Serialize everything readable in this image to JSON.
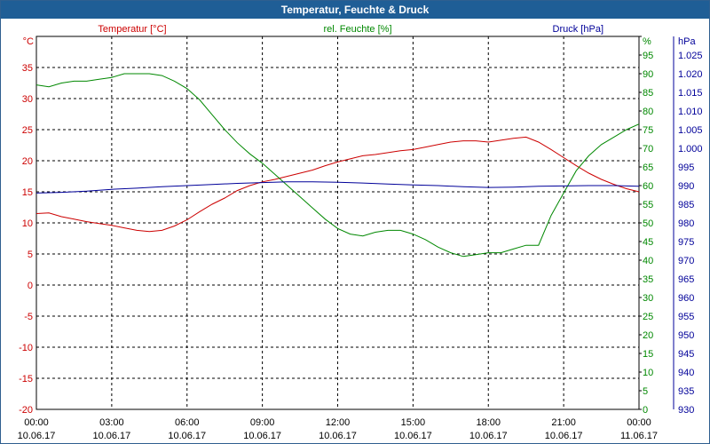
{
  "window": {
    "title": "Temperatur, Feuchte & Druck"
  },
  "colors": {
    "temperature": "#cc0000",
    "humidity": "#008800",
    "pressure": "#000099",
    "grid": "#000000",
    "titlebar": "#1f5e96"
  },
  "chart_data": {
    "type": "line",
    "title": "Temperatur, Feuchte & Druck",
    "grid": true,
    "x": {
      "labels": [
        "00:00",
        "03:00",
        "06:00",
        "09:00",
        "12:00",
        "15:00",
        "18:00",
        "21:00",
        "00:00"
      ],
      "dates": [
        "10.06.17",
        "10.06.17",
        "10.06.17",
        "10.06.17",
        "10.06.17",
        "10.06.17",
        "10.06.17",
        "10.06.17",
        "11.06.17"
      ],
      "range_hours": [
        0,
        24
      ]
    },
    "axes": {
      "temperature": {
        "label": "Temperatur [°C]",
        "unit": "°C",
        "side": "left",
        "range": [
          -20,
          40
        ],
        "ticks": [
          "35",
          "30",
          "25",
          "20",
          "15",
          "10",
          "5",
          "0",
          "-5",
          "-10",
          "-15",
          "-20"
        ]
      },
      "humidity": {
        "label": "rel. Feuchte [%]",
        "unit": "%",
        "side": "right",
        "range": [
          0,
          100
        ],
        "ticks": [
          "95",
          "90",
          "85",
          "80",
          "75",
          "70",
          "65",
          "60",
          "55",
          "50",
          "45",
          "40",
          "35",
          "30",
          "25",
          "20",
          "15",
          "10",
          "5",
          "0"
        ]
      },
      "pressure": {
        "label": "Druck [hPa]",
        "unit": "hPa",
        "side": "right",
        "range": [
          930,
          1030
        ],
        "ticks": [
          "1.025",
          "1.020",
          "1.015",
          "1.010",
          "1.005",
          "1.000",
          "995",
          "990",
          "985",
          "980",
          "975",
          "970",
          "965",
          "960",
          "955",
          "950",
          "945",
          "940",
          "935",
          "930"
        ]
      }
    },
    "series": [
      {
        "name": "Temperatur [°C]",
        "axis": "temperature",
        "points": [
          [
            0,
            11.5
          ],
          [
            0.5,
            11.6
          ],
          [
            1,
            11.0
          ],
          [
            1.5,
            10.6
          ],
          [
            2,
            10.2
          ],
          [
            2.5,
            9.9
          ],
          [
            3,
            9.6
          ],
          [
            3.5,
            9.2
          ],
          [
            4,
            8.8
          ],
          [
            4.5,
            8.6
          ],
          [
            5,
            8.8
          ],
          [
            5.5,
            9.5
          ],
          [
            6,
            10.5
          ],
          [
            6.5,
            11.8
          ],
          [
            7,
            13.0
          ],
          [
            7.5,
            14.0
          ],
          [
            8,
            15.2
          ],
          [
            8.5,
            16.0
          ],
          [
            9,
            16.6
          ],
          [
            9.5,
            17.0
          ],
          [
            10,
            17.5
          ],
          [
            10.5,
            18.0
          ],
          [
            11,
            18.5
          ],
          [
            11.5,
            19.2
          ],
          [
            12,
            19.8
          ],
          [
            12.5,
            20.3
          ],
          [
            13,
            20.8
          ],
          [
            13.5,
            21.0
          ],
          [
            14,
            21.3
          ],
          [
            14.5,
            21.6
          ],
          [
            15,
            21.8
          ],
          [
            15.5,
            22.2
          ],
          [
            16,
            22.6
          ],
          [
            16.5,
            23.0
          ],
          [
            17,
            23.2
          ],
          [
            17.5,
            23.2
          ],
          [
            18,
            23.0
          ],
          [
            18.5,
            23.3
          ],
          [
            19,
            23.6
          ],
          [
            19.5,
            23.8
          ],
          [
            20,
            23.0
          ],
          [
            20.5,
            21.8
          ],
          [
            21,
            20.5
          ],
          [
            21.5,
            19.2
          ],
          [
            22,
            18.0
          ],
          [
            22.5,
            17.0
          ],
          [
            23,
            16.2
          ],
          [
            23.5,
            15.5
          ],
          [
            24,
            15.0
          ]
        ]
      },
      {
        "name": "rel. Feuchte [%]",
        "axis": "humidity",
        "points": [
          [
            0,
            87
          ],
          [
            0.5,
            86.5
          ],
          [
            1,
            87.5
          ],
          [
            1.5,
            88
          ],
          [
            2,
            88
          ],
          [
            2.5,
            88.5
          ],
          [
            3,
            89
          ],
          [
            3.5,
            90
          ],
          [
            4,
            90
          ],
          [
            4.5,
            90
          ],
          [
            5,
            89.5
          ],
          [
            5.5,
            88
          ],
          [
            6,
            86
          ],
          [
            6.5,
            83
          ],
          [
            7,
            79
          ],
          [
            7.5,
            75
          ],
          [
            8,
            71.5
          ],
          [
            8.5,
            68.5
          ],
          [
            9,
            66
          ],
          [
            9.5,
            63
          ],
          [
            10,
            60
          ],
          [
            10.5,
            57
          ],
          [
            11,
            54
          ],
          [
            11.5,
            51
          ],
          [
            12,
            48.5
          ],
          [
            12.5,
            47
          ],
          [
            13,
            46.5
          ],
          [
            13.5,
            47.5
          ],
          [
            14,
            48
          ],
          [
            14.5,
            48
          ],
          [
            15,
            47
          ],
          [
            15.5,
            45.5
          ],
          [
            16,
            43.5
          ],
          [
            16.5,
            42
          ],
          [
            17,
            41
          ],
          [
            17.5,
            41.5
          ],
          [
            18,
            42
          ],
          [
            18.5,
            42
          ],
          [
            19,
            43
          ],
          [
            19.5,
            44
          ],
          [
            20,
            44
          ],
          [
            20.5,
            52
          ],
          [
            21,
            58
          ],
          [
            21.5,
            64
          ],
          [
            22,
            68
          ],
          [
            22.5,
            71
          ],
          [
            23,
            73
          ],
          [
            23.5,
            75
          ],
          [
            24,
            76.5
          ]
        ]
      },
      {
        "name": "Druck [hPa]",
        "axis": "pressure",
        "points": [
          [
            0,
            988
          ],
          [
            1,
            988.2
          ],
          [
            2,
            988.5
          ],
          [
            3,
            989
          ],
          [
            4,
            989.3
          ],
          [
            5,
            989.7
          ],
          [
            6,
            990
          ],
          [
            7,
            990.3
          ],
          [
            8,
            990.6
          ],
          [
            9,
            990.8
          ],
          [
            10,
            991
          ],
          [
            11,
            991
          ],
          [
            12,
            990.9
          ],
          [
            13,
            990.7
          ],
          [
            14,
            990.4
          ],
          [
            15,
            990.2
          ],
          [
            16,
            990
          ],
          [
            17,
            989.7
          ],
          [
            18,
            989.5
          ],
          [
            19,
            989.6
          ],
          [
            20,
            989.8
          ],
          [
            21,
            989.9
          ],
          [
            22,
            990
          ],
          [
            23,
            990
          ],
          [
            24,
            989.8
          ]
        ]
      }
    ]
  }
}
